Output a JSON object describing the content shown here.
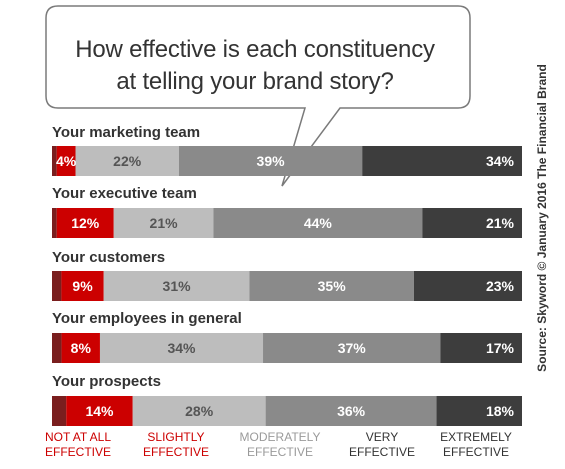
{
  "title_line1": "How effective is each constituency",
  "title_line2": "at telling your brand story?",
  "source": "Source: Skyword © January 2016 The Financial Brand",
  "colors": {
    "not_at_all": "#7a1e1e",
    "slightly": "#cc0000",
    "moderately": "#bdbdbd",
    "very": "#8a8a8a",
    "extremely": "#3d3d3d"
  },
  "chart_data": {
    "type": "bar",
    "orientation": "horizontal-stacked-100",
    "categories": [
      "Your marketing team",
      "Your executive team",
      "Your customers",
      "Your employees in general",
      "Your prospects"
    ],
    "series": [
      {
        "name": "NOT AT ALL EFFECTIVE",
        "label_lines": [
          "NOT AT ALL",
          "EFFECTIVE"
        ],
        "values": [
          1,
          1,
          2,
          2,
          3
        ],
        "labeled": false
      },
      {
        "name": "SLIGHTLY EFFECTIVE",
        "label_lines": [
          "SLIGHTLY",
          "EFFECTIVE"
        ],
        "values": [
          4,
          12,
          9,
          8,
          14
        ],
        "labeled": true
      },
      {
        "name": "MODERATELY EFFECTIVE",
        "label_lines": [
          "MODERATELY",
          "EFFECTIVE"
        ],
        "values": [
          22,
          21,
          31,
          34,
          28
        ],
        "labeled": true
      },
      {
        "name": "VERY EFFECTIVE",
        "label_lines": [
          "VERY",
          "EFFECTIVE"
        ],
        "values": [
          39,
          44,
          35,
          37,
          36
        ],
        "labeled": true
      },
      {
        "name": "EXTREMELY EFFECTIVE",
        "label_lines": [
          "EXTREMELY",
          "EFFECTIVE"
        ],
        "values": [
          34,
          21,
          23,
          17,
          18
        ],
        "labeled": true
      }
    ],
    "value_suffix": "%",
    "legend_position": "bottom"
  }
}
